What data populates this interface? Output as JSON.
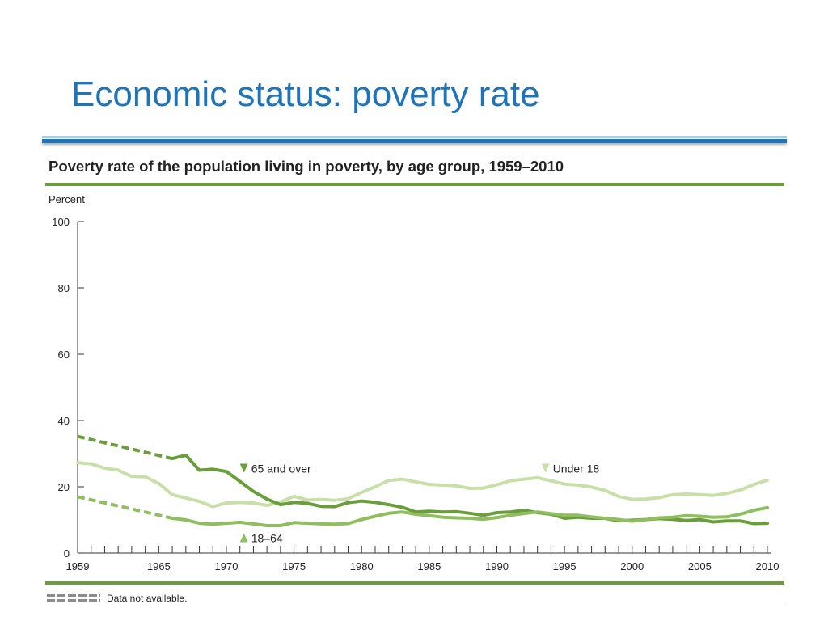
{
  "slide": {
    "title": "Economic status: poverty rate"
  },
  "chart_data": {
    "type": "line",
    "title": "Poverty rate of the population living in poverty, by age group, 1959–2010",
    "ylabel": "Percent",
    "xlabel": "",
    "xlim": [
      1959,
      2010
    ],
    "ylim": [
      0,
      100
    ],
    "yticks": [
      0,
      20,
      40,
      60,
      80,
      100
    ],
    "xticks": [
      1959,
      1965,
      1970,
      1975,
      1980,
      1985,
      1990,
      1995,
      2000,
      2005,
      2010
    ],
    "grid": false,
    "series": [
      {
        "name": "Under 18",
        "color": "#c8dfa8",
        "marker": "down-triangle",
        "gap_start": null,
        "gap_end": null,
        "x": [
          1959,
          1960,
          1961,
          1962,
          1963,
          1964,
          1965,
          1966,
          1967,
          1968,
          1969,
          1970,
          1971,
          1972,
          1973,
          1974,
          1975,
          1976,
          1977,
          1978,
          1979,
          1980,
          1981,
          1982,
          1983,
          1984,
          1985,
          1986,
          1987,
          1988,
          1989,
          1990,
          1991,
          1992,
          1993,
          1994,
          1995,
          1996,
          1997,
          1998,
          1999,
          2000,
          2001,
          2002,
          2003,
          2004,
          2005,
          2006,
          2007,
          2008,
          2009,
          2010
        ],
        "y": [
          27.3,
          26.9,
          25.6,
          25.0,
          23.1,
          23.0,
          21.0,
          17.6,
          16.6,
          15.6,
          14.0,
          15.1,
          15.3,
          15.1,
          14.4,
          15.4,
          17.1,
          16.0,
          16.2,
          15.9,
          16.4,
          18.3,
          20.0,
          21.9,
          22.3,
          21.5,
          20.7,
          20.5,
          20.3,
          19.5,
          19.6,
          20.6,
          21.8,
          22.3,
          22.7,
          21.8,
          20.8,
          20.5,
          19.9,
          18.9,
          17.1,
          16.2,
          16.3,
          16.7,
          17.6,
          17.8,
          17.6,
          17.4,
          18.0,
          19.0,
          20.7,
          22.0
        ]
      },
      {
        "name": "65 and over",
        "color": "#6a9e3a",
        "marker": "down-triangle",
        "gap_start": 1959,
        "gap_end": 1966,
        "x": [
          1966,
          1967,
          1968,
          1969,
          1970,
          1971,
          1972,
          1973,
          1974,
          1975,
          1976,
          1977,
          1978,
          1979,
          1980,
          1981,
          1982,
          1983,
          1984,
          1985,
          1986,
          1987,
          1988,
          1989,
          1990,
          1991,
          1992,
          1993,
          1994,
          1995,
          1996,
          1997,
          1998,
          1999,
          2000,
          2001,
          2002,
          2003,
          2004,
          2005,
          2006,
          2007,
          2008,
          2009,
          2010
        ],
        "y": [
          28.5,
          29.5,
          25.0,
          25.3,
          24.6,
          21.6,
          18.6,
          16.3,
          14.6,
          15.3,
          15.0,
          14.1,
          14.0,
          15.2,
          15.7,
          15.3,
          14.6,
          13.8,
          12.4,
          12.6,
          12.4,
          12.5,
          12.0,
          11.4,
          12.2,
          12.4,
          12.9,
          12.2,
          11.7,
          10.5,
          10.8,
          10.5,
          10.5,
          9.7,
          9.9,
          10.1,
          10.4,
          10.2,
          9.8,
          10.1,
          9.4,
          9.7,
          9.7,
          8.9,
          9.0
        ]
      },
      {
        "name": "18–64",
        "color": "#8fbe5f",
        "marker": "up-triangle",
        "gap_start": 1959,
        "gap_end": 1966,
        "x": [
          1966,
          1967,
          1968,
          1969,
          1970,
          1971,
          1972,
          1973,
          1974,
          1975,
          1976,
          1977,
          1978,
          1979,
          1980,
          1981,
          1982,
          1983,
          1984,
          1985,
          1986,
          1987,
          1988,
          1989,
          1990,
          1991,
          1992,
          1993,
          1994,
          1995,
          1996,
          1997,
          1998,
          1999,
          2000,
          2001,
          2002,
          2003,
          2004,
          2005,
          2006,
          2007,
          2008,
          2009,
          2010
        ],
        "y": [
          10.5,
          10.0,
          9.0,
          8.7,
          9.0,
          9.3,
          8.8,
          8.3,
          8.3,
          9.2,
          9.0,
          8.8,
          8.7,
          8.9,
          10.1,
          11.1,
          12.0,
          12.4,
          11.7,
          11.3,
          10.8,
          10.6,
          10.5,
          10.2,
          10.7,
          11.4,
          11.9,
          12.4,
          11.9,
          11.4,
          11.4,
          10.9,
          10.5,
          10.1,
          9.6,
          10.1,
          10.6,
          10.8,
          11.3,
          11.1,
          10.8,
          10.9,
          11.7,
          12.9,
          13.7
        ]
      }
    ],
    "missing_data": [
      {
        "series": "65 and over",
        "x": [
          1959,
          1966
        ],
        "y": [
          35.2,
          28.5
        ]
      },
      {
        "series": "18–64",
        "x": [
          1959,
          1966
        ],
        "y": [
          17.0,
          10.5
        ]
      }
    ],
    "annotations": [
      {
        "text": "65 and over",
        "x": 1971.3,
        "y": 25.5,
        "marker": "down-triangle",
        "marker_color": "#6a9e3a"
      },
      {
        "text": "Under 18",
        "x": 1993.6,
        "y": 25.5,
        "marker": "down-triangle",
        "marker_color": "#c8dfa8"
      },
      {
        "text": "18–64",
        "x": 1971.3,
        "y": 4.5,
        "marker": "up-triangle",
        "marker_color": "#8fbe5f"
      }
    ]
  },
  "legend": {
    "text": "Data not available."
  }
}
